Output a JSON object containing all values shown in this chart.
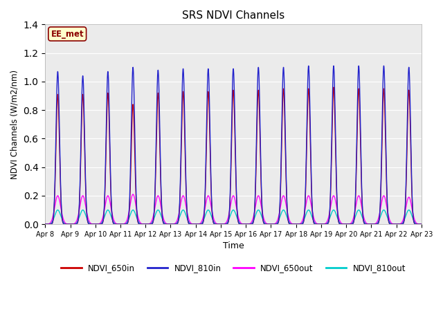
{
  "title": "SRS NDVI Channels",
  "xlabel": "Time",
  "ylabel": "NDVI Channels (W/m2/nm)",
  "ylim": [
    0,
    1.4
  ],
  "annotation_text": "EE_met",
  "fig_bg_color": "#ffffff",
  "plot_bg_color": "#ebebeb",
  "colors": {
    "NDVI_650in": "#cc0000",
    "NDVI_810in": "#2222cc",
    "NDVI_650out": "#ff00ff",
    "NDVI_810out": "#00cccc"
  },
  "num_days": 15,
  "peaks_810in": [
    1.07,
    1.04,
    1.07,
    1.1,
    1.08,
    1.09,
    1.09,
    1.09,
    1.1,
    1.1,
    1.11,
    1.11,
    1.11,
    1.11,
    1.1
  ],
  "peaks_650in": [
    0.91,
    0.91,
    0.92,
    0.84,
    0.92,
    0.93,
    0.93,
    0.94,
    0.94,
    0.95,
    0.95,
    0.96,
    0.95,
    0.95,
    0.94
  ],
  "peaks_650out": [
    0.2,
    0.2,
    0.2,
    0.21,
    0.2,
    0.2,
    0.2,
    0.2,
    0.2,
    0.2,
    0.2,
    0.2,
    0.2,
    0.2,
    0.19
  ],
  "peaks_810out": [
    0.1,
    0.1,
    0.1,
    0.1,
    0.1,
    0.1,
    0.1,
    0.1,
    0.1,
    0.1,
    0.1,
    0.1,
    0.1,
    0.1,
    0.1
  ],
  "sigma_in": 0.07,
  "sigma_out": 0.12,
  "tick_labels": [
    "Apr 8",
    "Apr 9",
    "Apr 10",
    "Apr 11",
    "Apr 12",
    "Apr 13",
    "Apr 14",
    "Apr 15",
    "Apr 16",
    "Apr 17",
    "Apr 18",
    "Apr 19",
    "Apr 20",
    "Apr 21",
    "Apr 22",
    "Apr 23"
  ]
}
